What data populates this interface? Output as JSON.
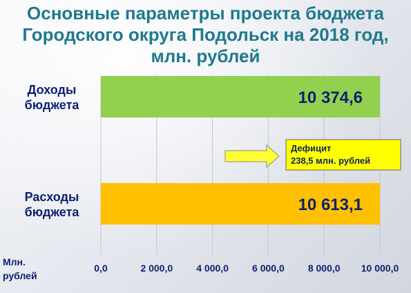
{
  "title": {
    "line1": "Основные параметры проекта бюджета",
    "line2": "Городского округа Подольск на 2018 год,",
    "line3": "млн. рублей"
  },
  "chart_data": {
    "type": "bar",
    "orientation": "horizontal",
    "title": "Основные параметры проекта бюджета Городского округа Подольск на 2018 год, млн. рублей",
    "categories": [
      "Доходы бюджета",
      "Расходы бюджета"
    ],
    "category_lines": [
      [
        "Доходы",
        "бюджета"
      ],
      [
        "Расходы",
        "бюджета"
      ]
    ],
    "values": [
      10374.6,
      10613.1
    ],
    "value_labels": [
      "10 374,6",
      "10 613,1"
    ],
    "bar_colors": [
      "#92d050",
      "#ffc000"
    ],
    "xlabel_lines": [
      "Млн.",
      "рублей"
    ],
    "xlim": [
      0,
      10000
    ],
    "ticks": [
      0,
      2000,
      4000,
      6000,
      8000,
      10000
    ],
    "tick_labels": [
      "0,0",
      "2 000,0",
      "4 000,0",
      "6 000,0",
      "8 000,0",
      "10 000,0"
    ],
    "grid": true,
    "annotation": {
      "lines": [
        "Дефицит",
        "238,5 млн. рублей"
      ],
      "value": 238.5,
      "fill": "#ffff00"
    }
  }
}
